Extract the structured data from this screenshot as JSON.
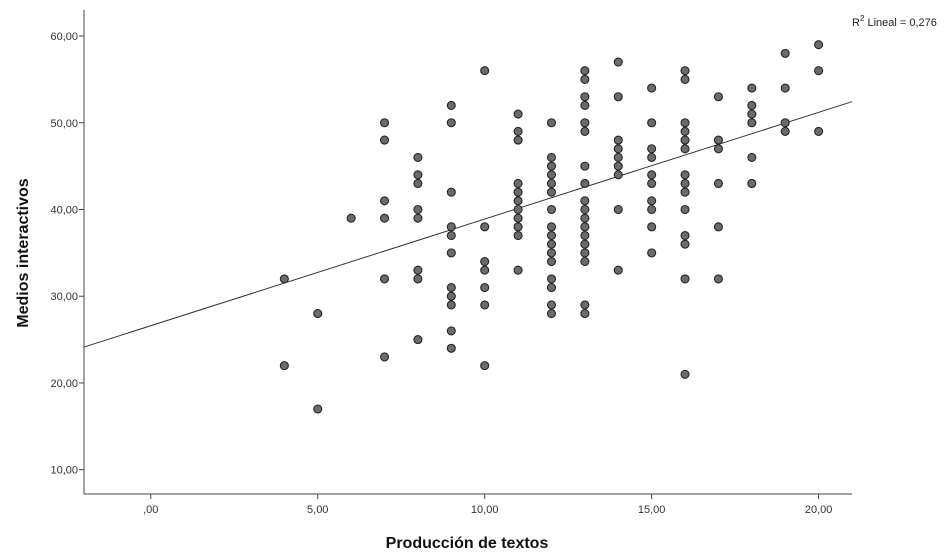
{
  "chart_data": {
    "type": "scatter",
    "xlabel": "Producción de textos",
    "ylabel": "Medios interactivos",
    "xlim": [
      -2,
      21
    ],
    "ylim": [
      7.2,
      63
    ],
    "x_ticks": [
      0,
      5,
      10,
      15,
      20
    ],
    "x_tick_labels": [
      ",00",
      "5,00",
      "10,00",
      "15,00",
      "20,00"
    ],
    "y_ticks": [
      10,
      20,
      30,
      40,
      50,
      60
    ],
    "y_tick_labels": [
      "10,00",
      "20,00",
      "30,00",
      "40,00",
      "50,00",
      "60,00"
    ],
    "fit_line": {
      "intercept": 26.6,
      "slope": 1.23,
      "label_prefix": "R",
      "label_sup": "2",
      "label_rest": " Lineal = 0,276"
    },
    "grid": false,
    "colors": {
      "marker_fill": "#6b6b6b",
      "marker_edge": "#262626",
      "line": "#333333"
    },
    "points": [
      [
        4,
        32
      ],
      [
        4,
        22
      ],
      [
        5,
        28
      ],
      [
        5,
        17
      ],
      [
        6,
        39
      ],
      [
        7,
        50
      ],
      [
        7,
        48
      ],
      [
        7,
        41
      ],
      [
        7,
        39
      ],
      [
        7,
        32
      ],
      [
        7,
        23
      ],
      [
        8,
        46
      ],
      [
        8,
        44
      ],
      [
        8,
        43
      ],
      [
        8,
        40
      ],
      [
        8,
        39
      ],
      [
        8,
        33
      ],
      [
        8,
        32
      ],
      [
        8,
        25
      ],
      [
        9,
        52
      ],
      [
        9,
        50
      ],
      [
        9,
        42
      ],
      [
        9,
        38
      ],
      [
        9,
        37
      ],
      [
        9,
        35
      ],
      [
        9,
        31
      ],
      [
        9,
        30
      ],
      [
        9,
        29
      ],
      [
        9,
        26
      ],
      [
        9,
        24
      ],
      [
        10,
        56
      ],
      [
        10,
        38
      ],
      [
        10,
        34
      ],
      [
        10,
        33
      ],
      [
        10,
        31
      ],
      [
        10,
        29
      ],
      [
        10,
        22
      ],
      [
        11,
        51
      ],
      [
        11,
        49
      ],
      [
        11,
        48
      ],
      [
        11,
        43
      ],
      [
        11,
        42
      ],
      [
        11,
        41
      ],
      [
        11,
        40
      ],
      [
        11,
        39
      ],
      [
        11,
        38
      ],
      [
        11,
        37
      ],
      [
        11,
        33
      ],
      [
        12,
        50
      ],
      [
        12,
        46
      ],
      [
        12,
        45
      ],
      [
        12,
        44
      ],
      [
        12,
        43
      ],
      [
        12,
        42
      ],
      [
        12,
        40
      ],
      [
        12,
        38
      ],
      [
        12,
        37
      ],
      [
        12,
        36
      ],
      [
        12,
        35
      ],
      [
        12,
        34
      ],
      [
        12,
        32
      ],
      [
        12,
        31
      ],
      [
        12,
        29
      ],
      [
        12,
        28
      ],
      [
        13,
        56
      ],
      [
        13,
        55
      ],
      [
        13,
        53
      ],
      [
        13,
        52
      ],
      [
        13,
        50
      ],
      [
        13,
        49
      ],
      [
        13,
        45
      ],
      [
        13,
        43
      ],
      [
        13,
        41
      ],
      [
        13,
        40
      ],
      [
        13,
        39
      ],
      [
        13,
        38
      ],
      [
        13,
        37
      ],
      [
        13,
        36
      ],
      [
        13,
        35
      ],
      [
        13,
        34
      ],
      [
        13,
        29
      ],
      [
        13,
        28
      ],
      [
        14,
        57
      ],
      [
        14,
        53
      ],
      [
        14,
        48
      ],
      [
        14,
        47
      ],
      [
        14,
        46
      ],
      [
        14,
        45
      ],
      [
        14,
        44
      ],
      [
        14,
        40
      ],
      [
        14,
        33
      ],
      [
        15,
        54
      ],
      [
        15,
        50
      ],
      [
        15,
        47
      ],
      [
        15,
        46
      ],
      [
        15,
        44
      ],
      [
        15,
        43
      ],
      [
        15,
        41
      ],
      [
        15,
        40
      ],
      [
        15,
        38
      ],
      [
        15,
        35
      ],
      [
        16,
        56
      ],
      [
        16,
        55
      ],
      [
        16,
        50
      ],
      [
        16,
        49
      ],
      [
        16,
        48
      ],
      [
        16,
        47
      ],
      [
        16,
        44
      ],
      [
        16,
        43
      ],
      [
        16,
        42
      ],
      [
        16,
        40
      ],
      [
        16,
        37
      ],
      [
        16,
        36
      ],
      [
        16,
        32
      ],
      [
        16,
        21
      ],
      [
        17,
        53
      ],
      [
        17,
        48
      ],
      [
        17,
        47
      ],
      [
        17,
        43
      ],
      [
        17,
        38
      ],
      [
        17,
        32
      ],
      [
        18,
        54
      ],
      [
        18,
        52
      ],
      [
        18,
        51
      ],
      [
        18,
        50
      ],
      [
        18,
        46
      ],
      [
        18,
        43
      ],
      [
        19,
        58
      ],
      [
        19,
        54
      ],
      [
        19,
        50
      ],
      [
        19,
        49
      ],
      [
        20,
        59
      ],
      [
        20,
        56
      ],
      [
        20,
        49
      ]
    ]
  }
}
